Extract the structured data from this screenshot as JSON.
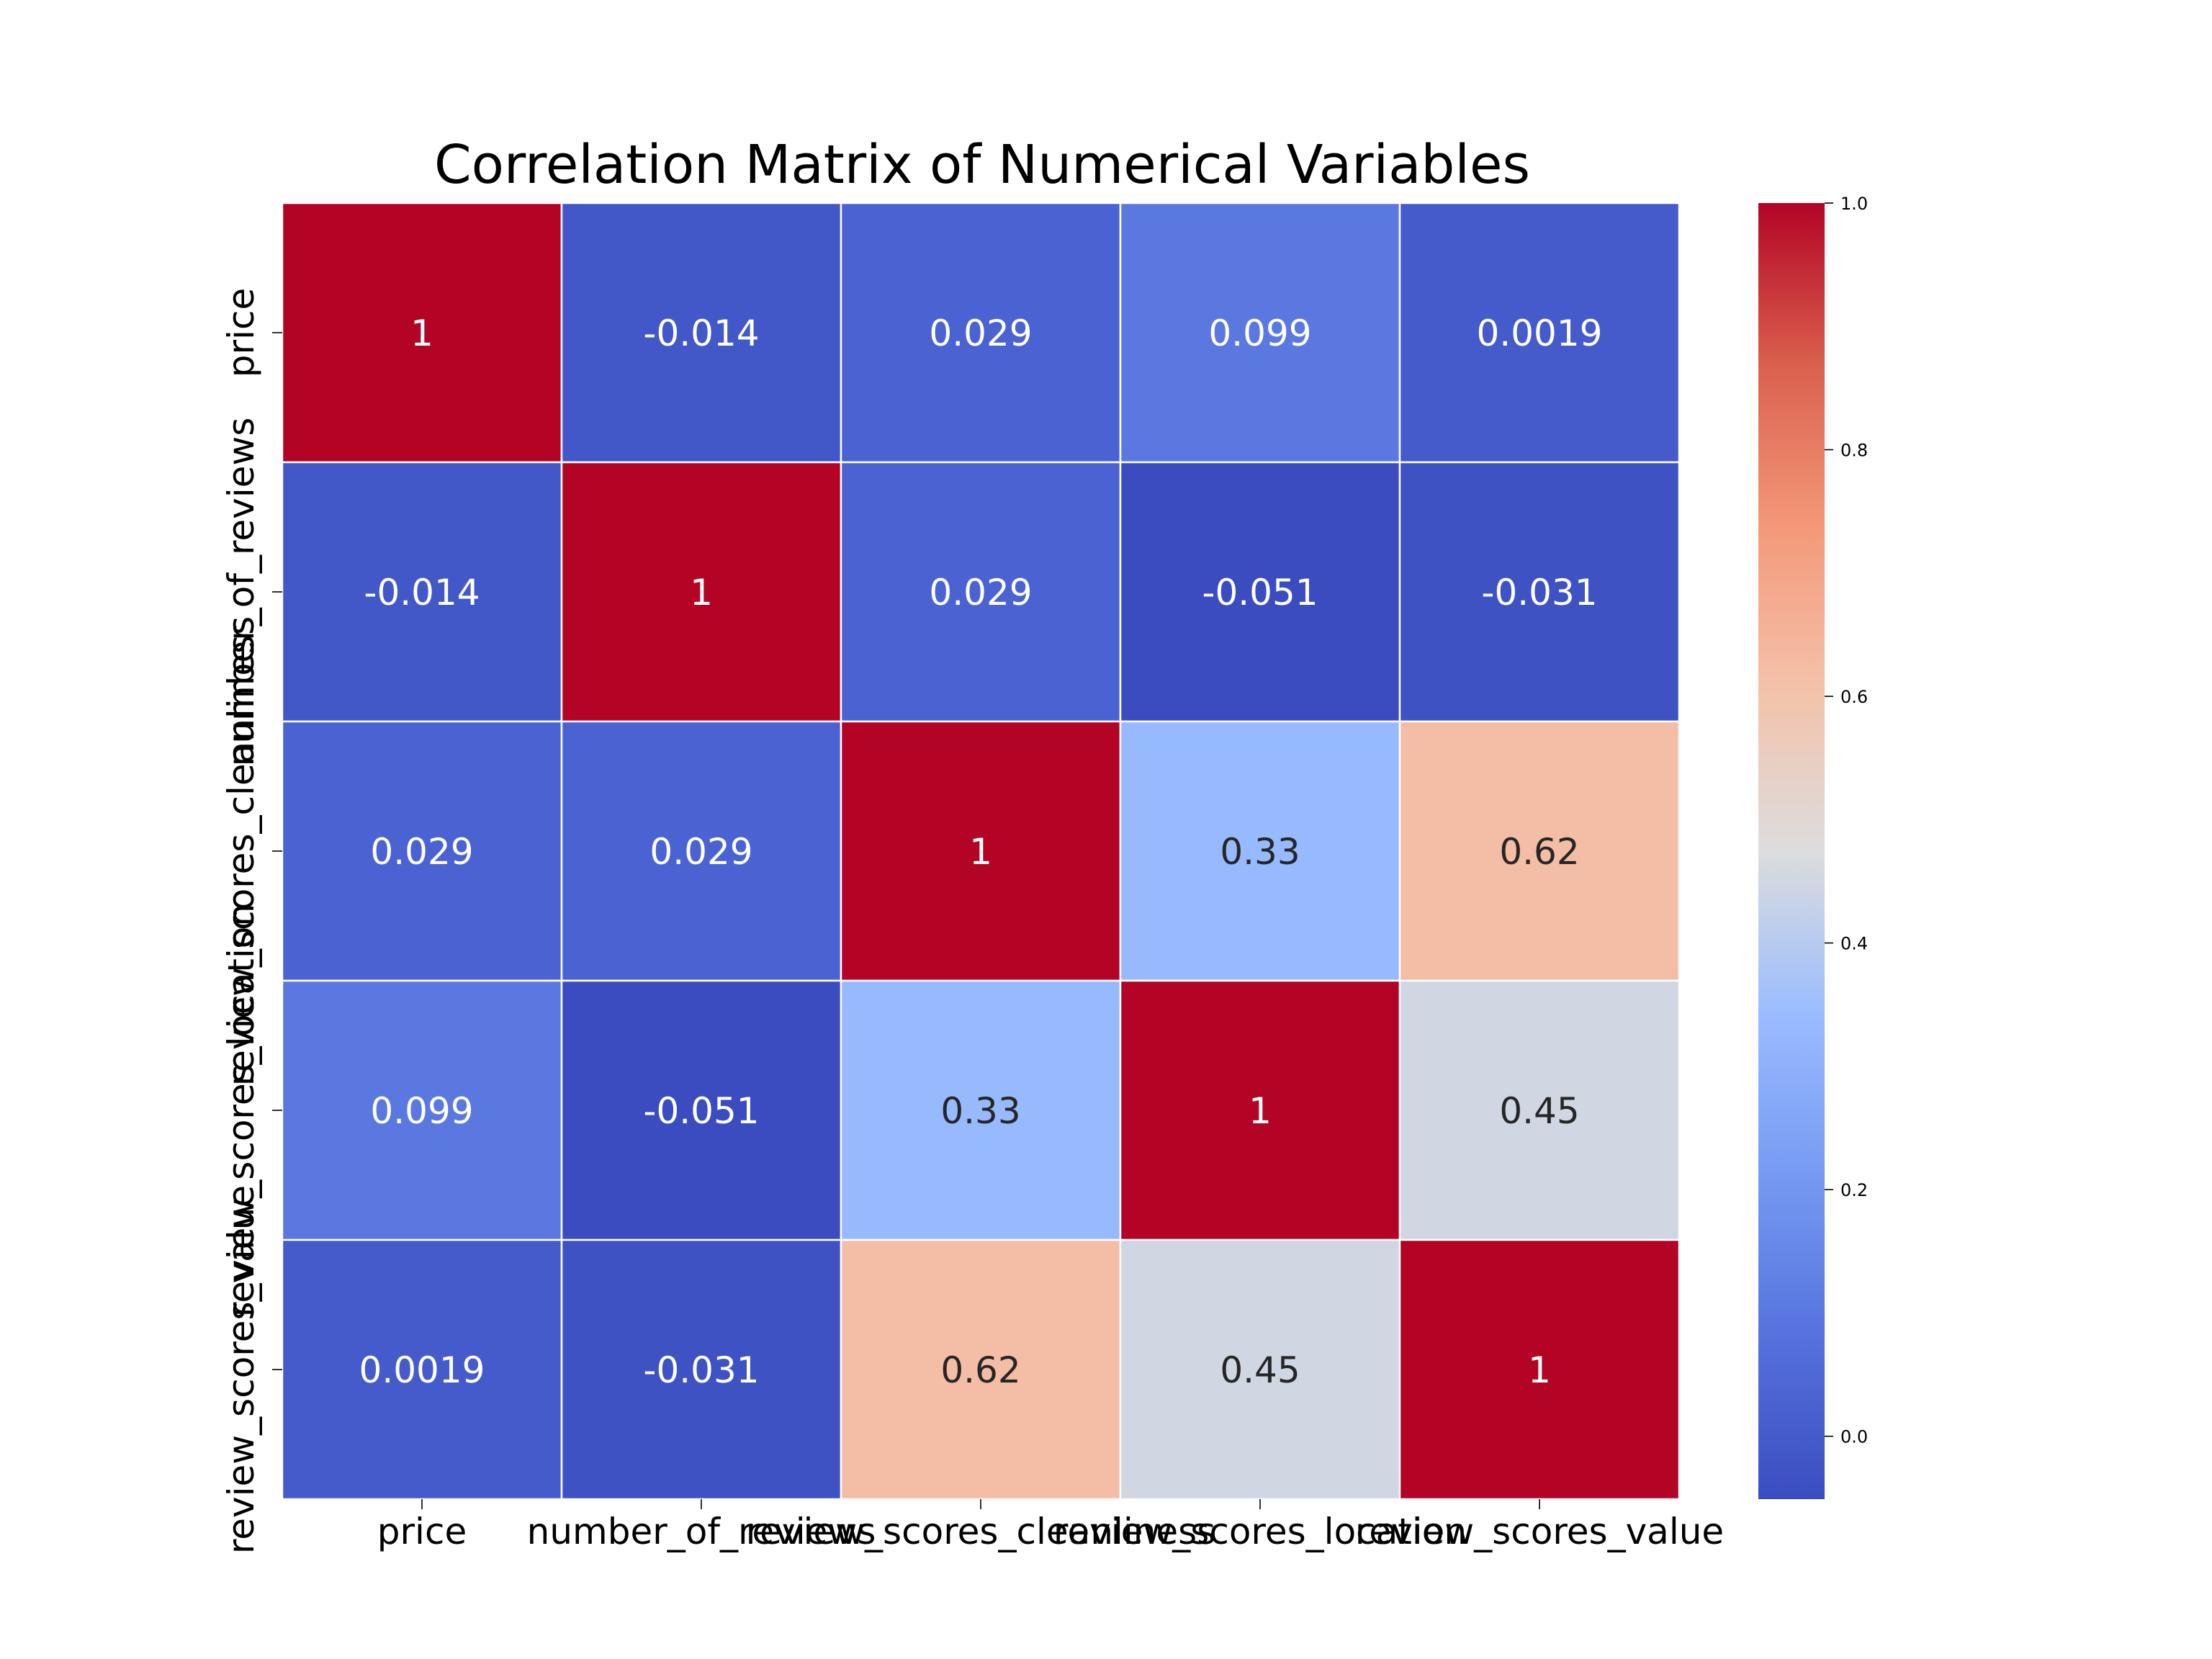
{
  "chart_data": {
    "type": "heatmap",
    "title": "Correlation Matrix of Numerical Variables",
    "xlabel": "",
    "ylabel": "",
    "x_labels": [
      "price",
      "number_of_reviews",
      "review_scores_cleanliness",
      "review_scores_location",
      "review_scores_value"
    ],
    "y_labels": [
      "price",
      "number_of_reviews",
      "review_scores_cleanliness",
      "review_scores_location",
      "review_scores_value"
    ],
    "values": [
      [
        1,
        -0.014,
        0.029,
        0.099,
        0.0019
      ],
      [
        -0.014,
        1,
        0.029,
        -0.051,
        -0.031
      ],
      [
        0.029,
        0.029,
        1,
        0.33,
        0.62
      ],
      [
        0.099,
        -0.051,
        0.33,
        1,
        0.45
      ],
      [
        0.0019,
        -0.031,
        0.62,
        0.45,
        1
      ]
    ],
    "annotations": [
      [
        "1",
        "-0.014",
        "0.029",
        "0.099",
        "0.0019"
      ],
      [
        "-0.014",
        "1",
        "0.029",
        "-0.051",
        "-0.031"
      ],
      [
        "0.029",
        "0.029",
        "1",
        "0.33",
        "0.62"
      ],
      [
        "0.099",
        "-0.051",
        "0.33",
        "1",
        "0.45"
      ],
      [
        "0.0019",
        "-0.031",
        "0.62",
        "0.45",
        "1"
      ]
    ],
    "colormap": "coolwarm",
    "colorbar": {
      "range": [
        -0.051,
        1
      ],
      "ticks": [
        0.0,
        0.2,
        0.4,
        0.6,
        0.8,
        1.0
      ],
      "tick_labels": [
        "0.0",
        "0.2",
        "0.4",
        "0.6",
        "0.8",
        "1.0"
      ],
      "position": "right"
    },
    "grid": false,
    "cell_separator_color": "#ffffff"
  }
}
